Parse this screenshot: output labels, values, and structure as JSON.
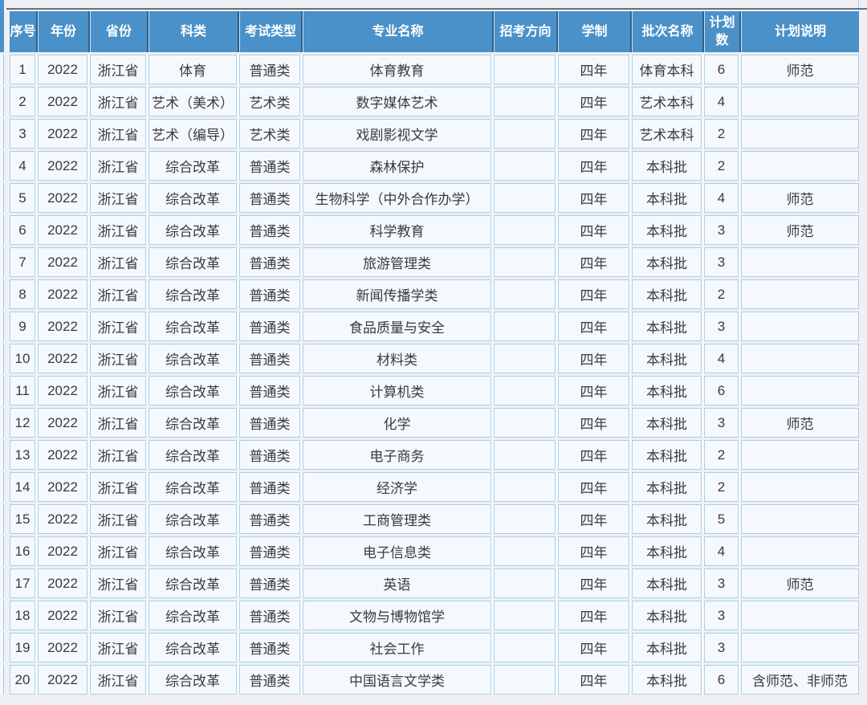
{
  "page": {
    "background": "#eef0f4",
    "header_bg": "#4a91c9",
    "header_text_color": "#ffffff",
    "cell_bg": "#f5f8fc",
    "cell_border_color": "#aacfe8",
    "header_separator_dark": "#2f5d8c",
    "body_text_color": "#3b3b3b"
  },
  "table": {
    "columns": [
      "序号",
      "年份",
      "省份",
      "科类",
      "考试类型",
      "专业名称",
      "招考方向",
      "学制",
      "批次名称",
      "计划数",
      "计划说明"
    ],
    "rows": [
      [
        "1",
        "2022",
        "浙江省",
        "体育",
        "普通类",
        "体育教育",
        "",
        "四年",
        "体育本科",
        "6",
        "师范"
      ],
      [
        "2",
        "2022",
        "浙江省",
        "艺术（美术）",
        "艺术类",
        "数字媒体艺术",
        "",
        "四年",
        "艺术本科",
        "4",
        ""
      ],
      [
        "3",
        "2022",
        "浙江省",
        "艺术（编导）",
        "艺术类",
        "戏剧影视文学",
        "",
        "四年",
        "艺术本科",
        "2",
        ""
      ],
      [
        "4",
        "2022",
        "浙江省",
        "综合改革",
        "普通类",
        "森林保护",
        "",
        "四年",
        "本科批",
        "2",
        ""
      ],
      [
        "5",
        "2022",
        "浙江省",
        "综合改革",
        "普通类",
        "生物科学（中外合作办学）",
        "",
        "四年",
        "本科批",
        "4",
        "师范"
      ],
      [
        "6",
        "2022",
        "浙江省",
        "综合改革",
        "普通类",
        "科学教育",
        "",
        "四年",
        "本科批",
        "3",
        "师范"
      ],
      [
        "7",
        "2022",
        "浙江省",
        "综合改革",
        "普通类",
        "旅游管理类",
        "",
        "四年",
        "本科批",
        "3",
        ""
      ],
      [
        "8",
        "2022",
        "浙江省",
        "综合改革",
        "普通类",
        "新闻传播学类",
        "",
        "四年",
        "本科批",
        "2",
        ""
      ],
      [
        "9",
        "2022",
        "浙江省",
        "综合改革",
        "普通类",
        "食品质量与安全",
        "",
        "四年",
        "本科批",
        "3",
        ""
      ],
      [
        "10",
        "2022",
        "浙江省",
        "综合改革",
        "普通类",
        "材料类",
        "",
        "四年",
        "本科批",
        "4",
        ""
      ],
      [
        "11",
        "2022",
        "浙江省",
        "综合改革",
        "普通类",
        "计算机类",
        "",
        "四年",
        "本科批",
        "6",
        ""
      ],
      [
        "12",
        "2022",
        "浙江省",
        "综合改革",
        "普通类",
        "化学",
        "",
        "四年",
        "本科批",
        "3",
        "师范"
      ],
      [
        "13",
        "2022",
        "浙江省",
        "综合改革",
        "普通类",
        "电子商务",
        "",
        "四年",
        "本科批",
        "2",
        ""
      ],
      [
        "14",
        "2022",
        "浙江省",
        "综合改革",
        "普通类",
        "经济学",
        "",
        "四年",
        "本科批",
        "2",
        ""
      ],
      [
        "15",
        "2022",
        "浙江省",
        "综合改革",
        "普通类",
        "工商管理类",
        "",
        "四年",
        "本科批",
        "5",
        ""
      ],
      [
        "16",
        "2022",
        "浙江省",
        "综合改革",
        "普通类",
        "电子信息类",
        "",
        "四年",
        "本科批",
        "4",
        ""
      ],
      [
        "17",
        "2022",
        "浙江省",
        "综合改革",
        "普通类",
        "英语",
        "",
        "四年",
        "本科批",
        "3",
        "师范"
      ],
      [
        "18",
        "2022",
        "浙江省",
        "综合改革",
        "普通类",
        "文物与博物馆学",
        "",
        "四年",
        "本科批",
        "3",
        ""
      ],
      [
        "19",
        "2022",
        "浙江省",
        "综合改革",
        "普通类",
        "社会工作",
        "",
        "四年",
        "本科批",
        "3",
        ""
      ],
      [
        "20",
        "2022",
        "浙江省",
        "综合改革",
        "普通类",
        "中国语言文学类",
        "",
        "四年",
        "本科批",
        "6",
        "含师范、非师范"
      ]
    ]
  },
  "chart_data": {
    "type": "table",
    "title": "",
    "columns": [
      "序号",
      "年份",
      "省份",
      "科类",
      "考试类型",
      "专业名称",
      "招考方向",
      "学制",
      "批次名称",
      "计划数",
      "计划说明"
    ],
    "rows": [
      [
        "1",
        "2022",
        "浙江省",
        "体育",
        "普通类",
        "体育教育",
        "",
        "四年",
        "体育本科",
        "6",
        "师范"
      ],
      [
        "2",
        "2022",
        "浙江省",
        "艺术（美术）",
        "艺术类",
        "数字媒体艺术",
        "",
        "四年",
        "艺术本科",
        "4",
        ""
      ],
      [
        "3",
        "2022",
        "浙江省",
        "艺术（编导）",
        "艺术类",
        "戏剧影视文学",
        "",
        "四年",
        "艺术本科",
        "2",
        ""
      ],
      [
        "4",
        "2022",
        "浙江省",
        "综合改革",
        "普通类",
        "森林保护",
        "",
        "四年",
        "本科批",
        "2",
        ""
      ],
      [
        "5",
        "2022",
        "浙江省",
        "综合改革",
        "普通类",
        "生物科学（中外合作办学）",
        "",
        "四年",
        "本科批",
        "4",
        "师范"
      ],
      [
        "6",
        "2022",
        "浙江省",
        "综合改革",
        "普通类",
        "科学教育",
        "",
        "四年",
        "本科批",
        "3",
        "师范"
      ],
      [
        "7",
        "2022",
        "浙江省",
        "综合改革",
        "普通类",
        "旅游管理类",
        "",
        "四年",
        "本科批",
        "3",
        ""
      ],
      [
        "8",
        "2022",
        "浙江省",
        "综合改革",
        "普通类",
        "新闻传播学类",
        "",
        "四年",
        "本科批",
        "2",
        ""
      ],
      [
        "9",
        "2022",
        "浙江省",
        "综合改革",
        "普通类",
        "食品质量与安全",
        "",
        "四年",
        "本科批",
        "3",
        ""
      ],
      [
        "10",
        "2022",
        "浙江省",
        "综合改革",
        "普通类",
        "材料类",
        "",
        "四年",
        "本科批",
        "4",
        ""
      ],
      [
        "11",
        "2022",
        "浙江省",
        "综合改革",
        "普通类",
        "计算机类",
        "",
        "四年",
        "本科批",
        "6",
        ""
      ],
      [
        "12",
        "2022",
        "浙江省",
        "综合改革",
        "普通类",
        "化学",
        "",
        "四年",
        "本科批",
        "3",
        "师范"
      ],
      [
        "13",
        "2022",
        "浙江省",
        "综合改革",
        "普通类",
        "电子商务",
        "",
        "四年",
        "本科批",
        "2",
        ""
      ],
      [
        "14",
        "2022",
        "浙江省",
        "综合改革",
        "普通类",
        "经济学",
        "",
        "四年",
        "本科批",
        "2",
        ""
      ],
      [
        "15",
        "2022",
        "浙江省",
        "综合改革",
        "普通类",
        "工商管理类",
        "",
        "四年",
        "本科批",
        "5",
        ""
      ],
      [
        "16",
        "2022",
        "浙江省",
        "综合改革",
        "普通类",
        "电子信息类",
        "",
        "四年",
        "本科批",
        "4",
        ""
      ],
      [
        "17",
        "2022",
        "浙江省",
        "综合改革",
        "普通类",
        "英语",
        "",
        "四年",
        "本科批",
        "3",
        "师范"
      ],
      [
        "18",
        "2022",
        "浙江省",
        "综合改革",
        "普通类",
        "文物与博物馆学",
        "",
        "四年",
        "本科批",
        "3",
        ""
      ],
      [
        "19",
        "2022",
        "浙江省",
        "综合改革",
        "普通类",
        "社会工作",
        "",
        "四年",
        "本科批",
        "3",
        ""
      ],
      [
        "20",
        "2022",
        "浙江省",
        "综合改革",
        "普通类",
        "中国语言文学类",
        "",
        "四年",
        "本科批",
        "6",
        "含师范、非师范"
      ]
    ]
  }
}
